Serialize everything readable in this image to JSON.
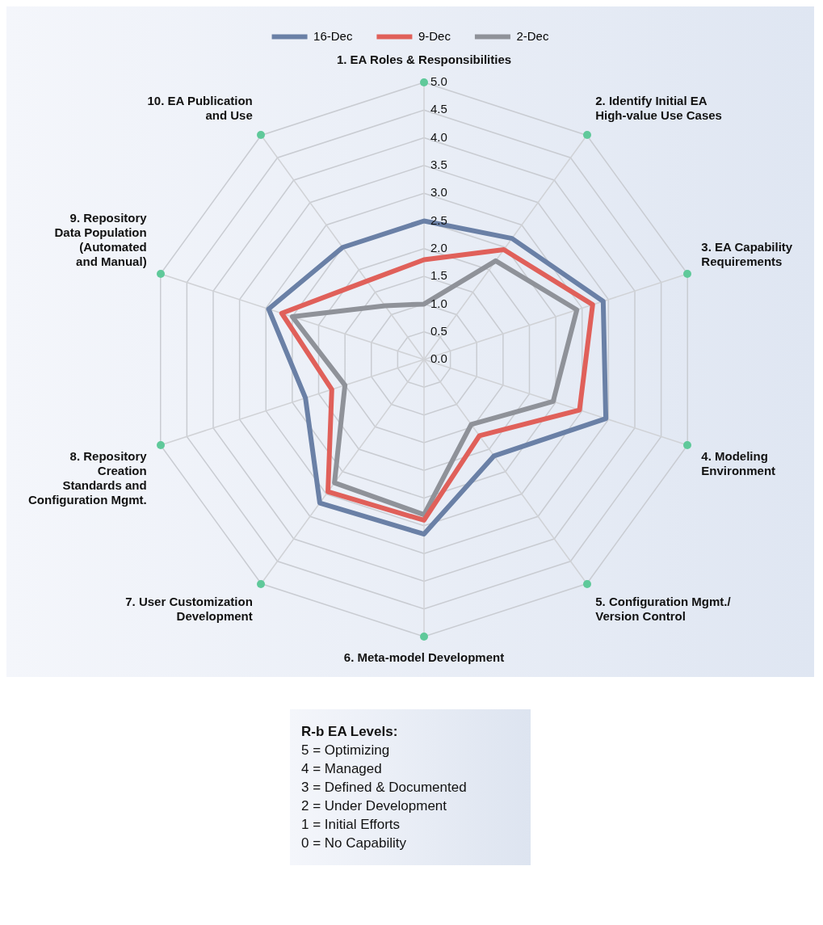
{
  "chart_data": {
    "type": "radar",
    "categories": [
      "1. EA Roles & Responsibilities",
      "2. Identify Initial EA\nHigh-value Use Cases",
      "3. EA Capability\nRequirements",
      "4. Modeling\nEnvironment",
      "5. Configuration Mgmt./\nVersion Control",
      "6. Meta-model Development",
      "7. User Customization\nDevelopment",
      "8. Repository\nCreation\nStandards and\nConfiguration Mgmt.",
      "9. Repository\nData Population\n(Automated\nand Manual)",
      "10. EA Publication\nand Use"
    ],
    "series": [
      {
        "name": "16-Dec",
        "color": "#6a80a6",
        "values": [
          2.5,
          2.7,
          3.4,
          3.45,
          2.15,
          3.15,
          3.2,
          2.25,
          2.95,
          2.5
        ]
      },
      {
        "name": "9-Dec",
        "color": "#e0605a",
        "values": [
          1.8,
          2.45,
          3.2,
          2.95,
          1.7,
          2.9,
          2.95,
          1.75,
          2.7,
          1.75
        ]
      },
      {
        "name": "2-Dec",
        "color": "#8f9299",
        "values": [
          1.0,
          2.2,
          2.9,
          2.45,
          1.45,
          2.8,
          2.75,
          1.5,
          2.5,
          1.2
        ]
      }
    ],
    "ylim": [
      0,
      5
    ],
    "yticks": [
      {
        "value": 0,
        "label": "0.0"
      },
      {
        "value": 0.5,
        "label": "0.5"
      },
      {
        "value": 1,
        "label": "1.0"
      },
      {
        "value": 1.5,
        "label": "1.5"
      },
      {
        "value": 2,
        "label": "2.0"
      },
      {
        "value": 2.5,
        "label": "2.5"
      },
      {
        "value": 3,
        "label": "3.0"
      },
      {
        "value": 3.5,
        "label": "3.5"
      },
      {
        "value": 4,
        "label": "4.0"
      },
      {
        "value": 4.5,
        "label": "4.5"
      },
      {
        "value": 5,
        "label": "5.0"
      }
    ],
    "grid": true,
    "legend": "top",
    "marker": "none",
    "line_style": "solid",
    "annotations": [
      "R-b EA Levels:",
      "5 = Optimizing",
      "4 = Managed",
      "3 = Defined & Documented",
      "2 = Under Development",
      "1 = Initial Efforts",
      "0 = No Capability"
    ]
  }
}
